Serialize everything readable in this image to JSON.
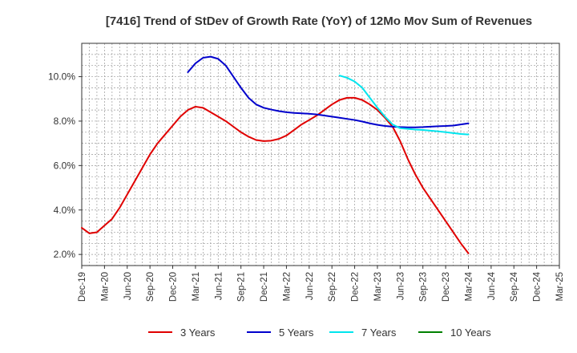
{
  "chart_data": {
    "type": "line",
    "title": "[7416]  Trend of StDev of Growth Rate (YoY) of 12Mo Mov Sum of Revenues",
    "xlabel": "",
    "ylabel": "",
    "ylim": [
      1.5,
      11.5
    ],
    "yticks": [
      2.0,
      4.0,
      6.0,
      8.0,
      10.0
    ],
    "ytick_labels": [
      "2.0%",
      "4.0%",
      "6.0%",
      "8.0%",
      "10.0%"
    ],
    "x_tick_labels": [
      "Dec-19",
      "Mar-20",
      "Jun-20",
      "Sep-20",
      "Dec-20",
      "Mar-21",
      "Jun-21",
      "Sep-21",
      "Dec-21",
      "Mar-22",
      "Jun-22",
      "Sep-22",
      "Dec-22",
      "Mar-23",
      "Jun-23",
      "Sep-23",
      "Dec-23",
      "Mar-24",
      "Jun-24",
      "Sep-24",
      "Dec-24",
      "Mar-25"
    ],
    "grid": true,
    "legend_position": "bottom",
    "series": [
      {
        "name": "3 Years",
        "color": "#e00000",
        "x": [
          0,
          1,
          2,
          3,
          4,
          5,
          6,
          7,
          8,
          9,
          10,
          11,
          12,
          13,
          14,
          15,
          16,
          17,
          18,
          19,
          20,
          21,
          22,
          23,
          24,
          25,
          26,
          27,
          28,
          29,
          30,
          31,
          32,
          33,
          34,
          35,
          36,
          37,
          38,
          39,
          40,
          41,
          42,
          43,
          44,
          45,
          46,
          47,
          48,
          49,
          50,
          51,
          52,
          53,
          54,
          55,
          56,
          57,
          58,
          59,
          60
        ],
        "values": [
          3.2,
          2.95,
          3.0,
          3.3,
          3.6,
          4.1,
          4.7,
          5.3,
          5.9,
          6.5,
          7.0,
          7.4,
          7.8,
          8.2,
          8.5,
          8.65,
          8.6,
          8.4,
          8.2,
          8.0,
          7.75,
          7.5,
          7.3,
          7.15,
          7.1,
          7.12,
          7.2,
          7.35,
          7.6,
          7.85,
          8.05,
          8.25,
          8.5,
          8.75,
          8.95,
          9.05,
          9.05,
          8.95,
          8.75,
          8.5,
          8.15,
          7.75,
          7.1,
          6.3,
          5.6,
          5.0,
          4.5,
          4.0,
          3.5,
          3.0,
          2.5,
          2.05,
          null,
          null,
          null,
          null,
          null,
          null,
          null,
          null,
          null
        ]
      },
      {
        "name": "5 Years",
        "color": "#0000cc",
        "x": [
          0,
          1,
          2,
          3,
          4,
          5,
          6,
          7,
          8,
          9,
          10,
          11,
          12,
          13,
          14,
          15,
          16,
          17,
          18,
          19,
          20,
          21,
          22,
          23,
          24,
          25,
          26,
          27,
          28,
          29,
          30,
          31,
          32,
          33,
          34,
          35,
          36,
          37,
          38,
          39,
          40,
          41,
          42,
          43,
          44,
          45,
          46,
          47,
          48,
          49,
          50,
          51,
          52,
          53,
          54,
          55,
          56,
          57,
          58,
          59,
          60
        ],
        "values": [
          null,
          null,
          null,
          null,
          null,
          null,
          null,
          null,
          null,
          null,
          null,
          null,
          null,
          null,
          10.2,
          10.6,
          10.85,
          10.9,
          10.8,
          10.5,
          10.0,
          9.5,
          9.05,
          8.75,
          8.6,
          8.52,
          8.45,
          8.4,
          8.37,
          8.35,
          8.33,
          8.3,
          8.25,
          8.2,
          8.15,
          8.1,
          8.05,
          7.98,
          7.9,
          7.83,
          7.78,
          7.75,
          7.73,
          7.72,
          7.72,
          7.73,
          7.75,
          7.77,
          7.78,
          7.8,
          7.85,
          7.9,
          null,
          null,
          null,
          null,
          null,
          null,
          null,
          null,
          null
        ]
      },
      {
        "name": "7 Years",
        "color": "#00e5ee",
        "x": [
          0,
          1,
          2,
          3,
          4,
          5,
          6,
          7,
          8,
          9,
          10,
          11,
          12,
          13,
          14,
          15,
          16,
          17,
          18,
          19,
          20,
          21,
          22,
          23,
          24,
          25,
          26,
          27,
          28,
          29,
          30,
          31,
          32,
          33,
          34,
          35,
          36,
          37,
          38,
          39,
          40,
          41,
          42,
          43,
          44,
          45,
          46,
          47,
          48,
          49,
          50,
          51,
          52,
          53,
          54,
          55,
          56,
          57,
          58,
          59,
          60
        ],
        "values": [
          null,
          null,
          null,
          null,
          null,
          null,
          null,
          null,
          null,
          null,
          null,
          null,
          null,
          null,
          null,
          null,
          null,
          null,
          null,
          null,
          null,
          null,
          null,
          null,
          null,
          null,
          null,
          null,
          null,
          null,
          null,
          null,
          null,
          null,
          10.05,
          9.95,
          9.78,
          9.5,
          9.05,
          8.6,
          8.2,
          7.85,
          7.68,
          7.65,
          7.62,
          7.6,
          7.57,
          7.54,
          7.5,
          7.46,
          7.42,
          7.4,
          null,
          null,
          null,
          null,
          null,
          null,
          null,
          null,
          null
        ]
      },
      {
        "name": "10 Years",
        "color": "#008000",
        "x": [],
        "values": []
      }
    ]
  }
}
